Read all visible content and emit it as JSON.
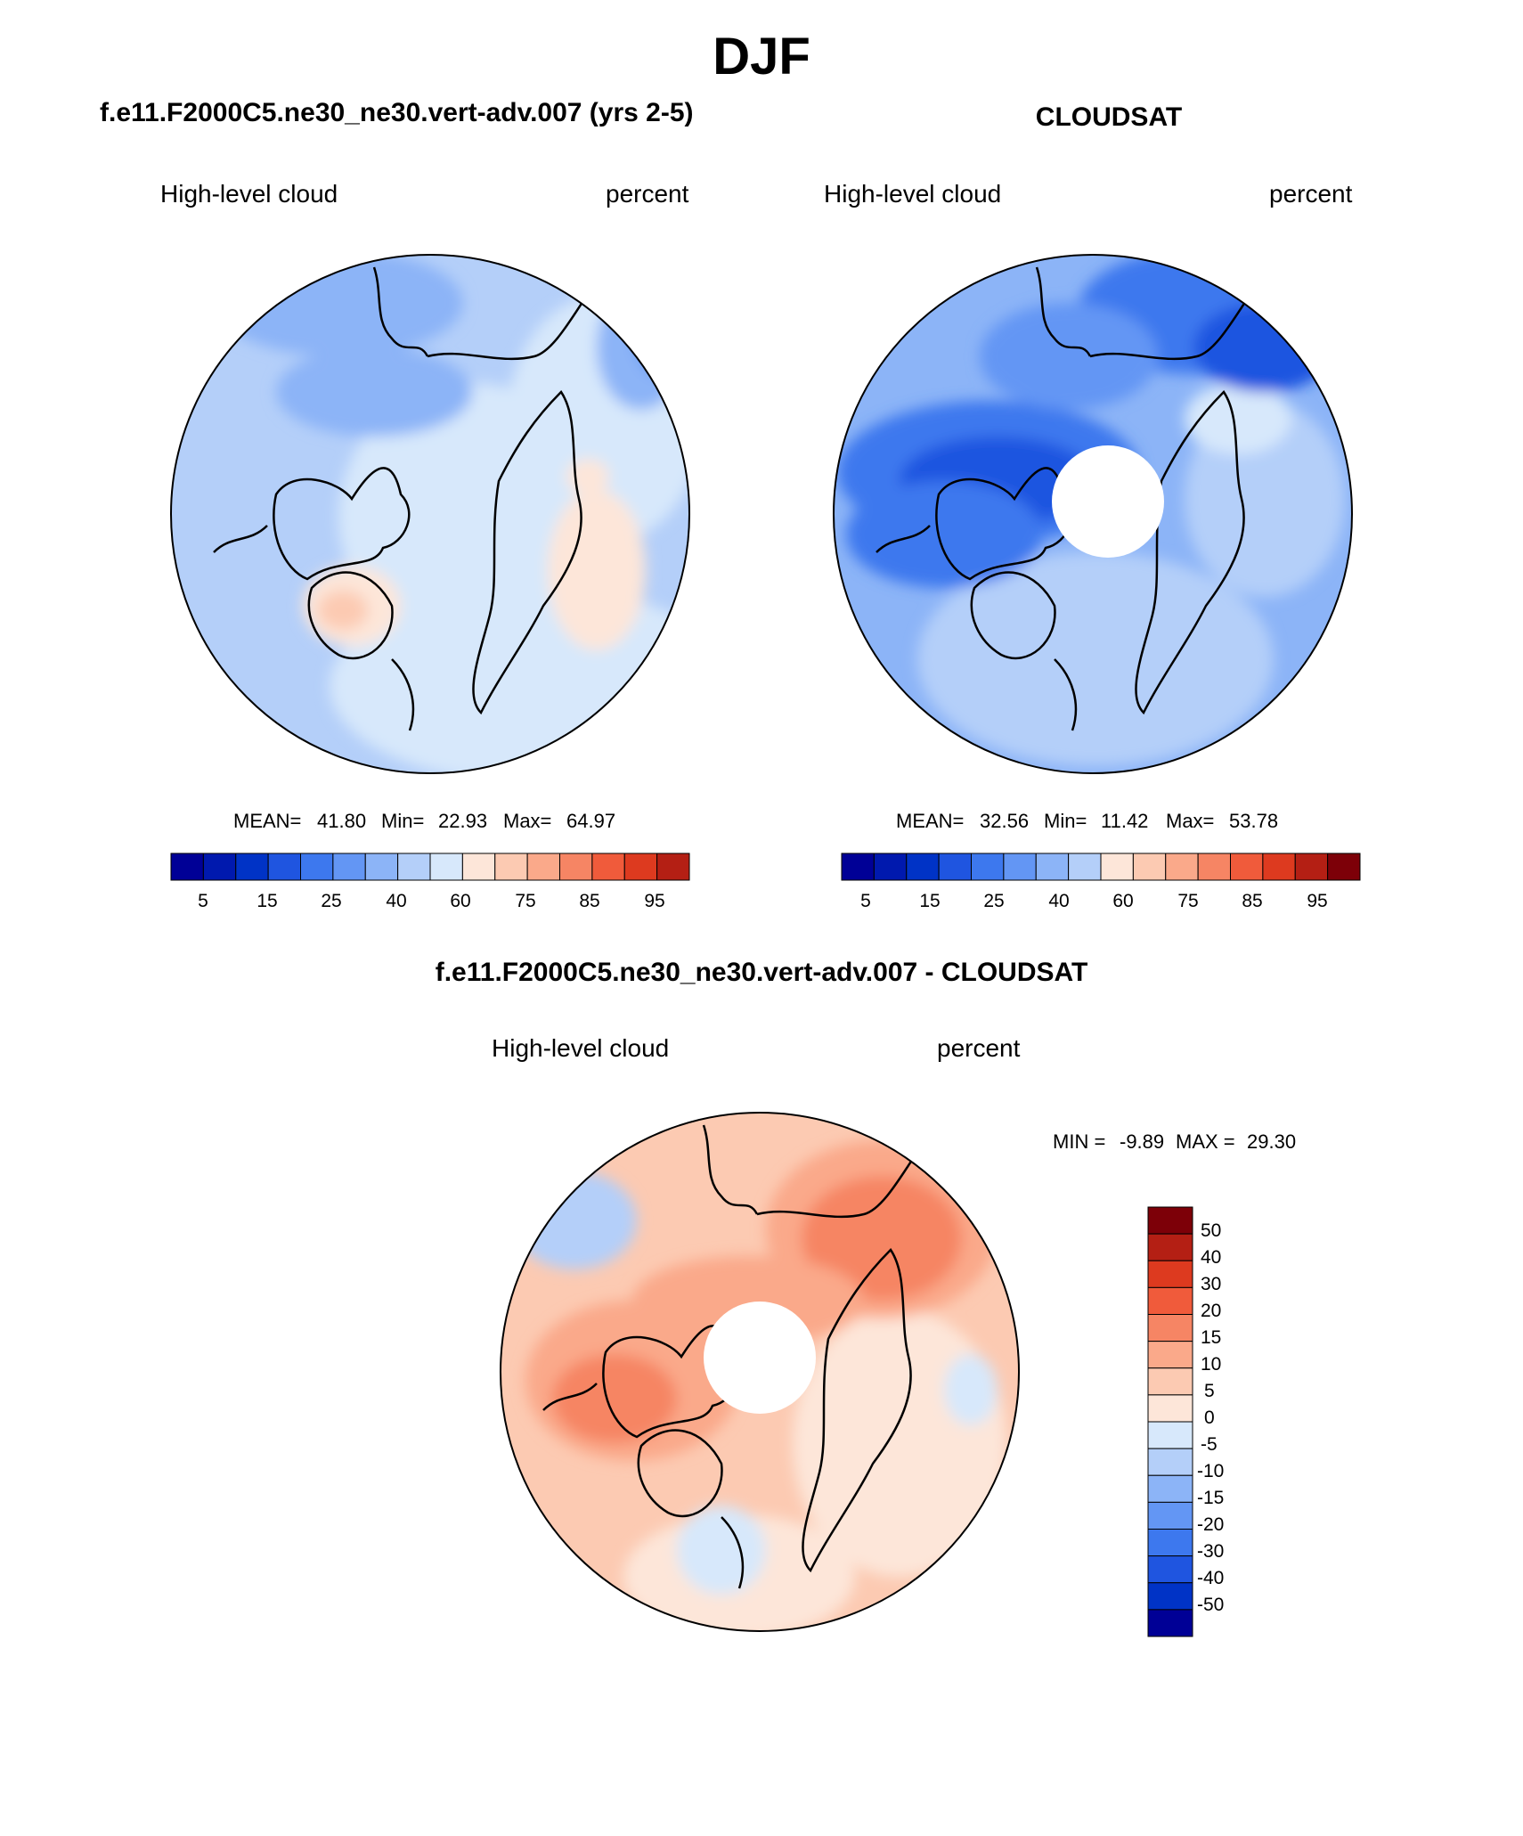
{
  "figure": {
    "title": "DJF",
    "colors": {
      "seq": [
        "#000096",
        "#0019AE",
        "#0033C6",
        "#1F55E0",
        "#3D78EE",
        "#6396F4",
        "#8CB4F7",
        "#B4CFF9",
        "#D7E8FB",
        "#FDE6D9",
        "#FCCAB2",
        "#FAA98A",
        "#F68564",
        "#F05B3B",
        "#DD3A1F",
        "#B41F14",
        "#7D0008"
      ],
      "land_outline": "#000000"
    }
  },
  "panels": {
    "left": {
      "title": "f.e11.F2000C5.ne30_ne30.vert-adv.007 (yrs 2-5)",
      "variable": "High-level cloud",
      "units": "percent",
      "stats": {
        "mean_label": "MEAN=",
        "mean": "41.80",
        "min_label": "Min=",
        "min": "22.93",
        "max_label": "Max=",
        "max": "64.97"
      }
    },
    "right": {
      "title": "CLOUDSAT",
      "variable": "High-level cloud",
      "units": "percent",
      "stats": {
        "mean_label": "MEAN=",
        "mean": "32.56",
        "min_label": "Min=",
        "min": "11.42",
        "max_label": "Max=",
        "max": "53.78"
      }
    },
    "diff": {
      "title": "f.e11.F2000C5.ne30_ne30.vert-adv.007 - CLOUDSAT",
      "variable": "High-level cloud",
      "units": "percent",
      "stats": {
        "min_label": "MIN =",
        "min": "-9.89",
        "max_label": "MAX =",
        "max": "29.30"
      }
    }
  },
  "chart_data": [
    {
      "type": "heatmap",
      "projection": "north-polar-stereographic",
      "title": "f.e11.F2000C5.ne30_ne30.vert-adv.007 (yrs 2-5)",
      "variable": "High-level cloud",
      "units": "percent",
      "mean": 41.8,
      "min": 22.93,
      "max": 64.97,
      "colorbar_levels": [
        5,
        10,
        15,
        20,
        25,
        30,
        35,
        40,
        45,
        50,
        55,
        60,
        65,
        70,
        75,
        80,
        85,
        90,
        95
      ],
      "colorbar_tick_labels": [
        "5",
        "15",
        "25",
        "40",
        "60",
        "75",
        "85",
        "95"
      ],
      "colorbar_orientation": "horizontal"
    },
    {
      "type": "heatmap",
      "projection": "north-polar-stereographic",
      "title": "CLOUDSAT",
      "variable": "High-level cloud",
      "units": "percent",
      "mean": 32.56,
      "min": 11.42,
      "max": 53.78,
      "colorbar_levels": [
        5,
        10,
        15,
        20,
        25,
        30,
        35,
        40,
        45,
        50,
        55,
        60,
        65,
        70,
        75,
        80,
        85,
        90,
        95
      ],
      "colorbar_tick_labels": [
        "5",
        "15",
        "25",
        "40",
        "60",
        "75",
        "85",
        "95"
      ],
      "colorbar_orientation": "horizontal",
      "missing_region": "polar cap (no data)"
    },
    {
      "type": "heatmap",
      "projection": "north-polar-stereographic",
      "title": "f.e11.F2000C5.ne30_ne30.vert-adv.007 - CLOUDSAT",
      "variable": "High-level cloud",
      "units": "percent",
      "min": -9.89,
      "max": 29.3,
      "colorbar_levels": [
        50,
        40,
        30,
        20,
        15,
        10,
        5,
        0,
        -5,
        -10,
        -15,
        -20,
        -30,
        -40,
        -50
      ],
      "colorbar_tick_labels": [
        "50",
        "40",
        "30",
        "20",
        "15",
        "10",
        "5",
        "0",
        "-5",
        "-10",
        "-15",
        "-20",
        "-30",
        "-40",
        "-50"
      ],
      "colorbar_orientation": "vertical",
      "missing_region": "polar cap (no data)"
    }
  ]
}
